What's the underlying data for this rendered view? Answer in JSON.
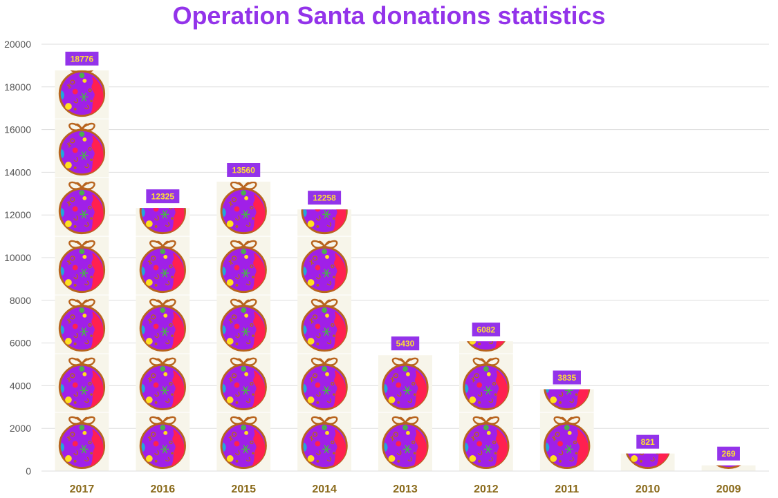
{
  "colors": {
    "title": "#9333ea",
    "label_bg": "#9333ea",
    "label_text": "#ffe033",
    "x_tick": "#8a6a1a",
    "y_tick": "#555555",
    "grid": "#dddddd",
    "tile_bg": "#f7f5ea",
    "ornament_body": "#a020e8",
    "ornament_rim": "#b8641e",
    "ornament_red": "#ff2050",
    "ornament_blue": "#20a8d8",
    "ornament_yellow": "#ffe020",
    "ornament_green": "#4caf50"
  },
  "chart_data": {
    "type": "bar",
    "mark_style": "stacked ornament pictograph",
    "title": "Operation Santa donations statistics",
    "xlabel": "",
    "ylabel": "",
    "categories": [
      "2017",
      "2016",
      "2015",
      "2014",
      "2013",
      "2012",
      "2011",
      "2010",
      "2009"
    ],
    "values": [
      18776,
      12325,
      13560,
      12258,
      5430,
      6082,
      3835,
      821,
      269
    ],
    "ylim": [
      0,
      20000
    ],
    "yticks": [
      0,
      2000,
      4000,
      6000,
      8000,
      10000,
      12000,
      14000,
      16000,
      18000,
      20000
    ],
    "units_per_ornament": 2750,
    "grid": true,
    "legend": "none"
  }
}
